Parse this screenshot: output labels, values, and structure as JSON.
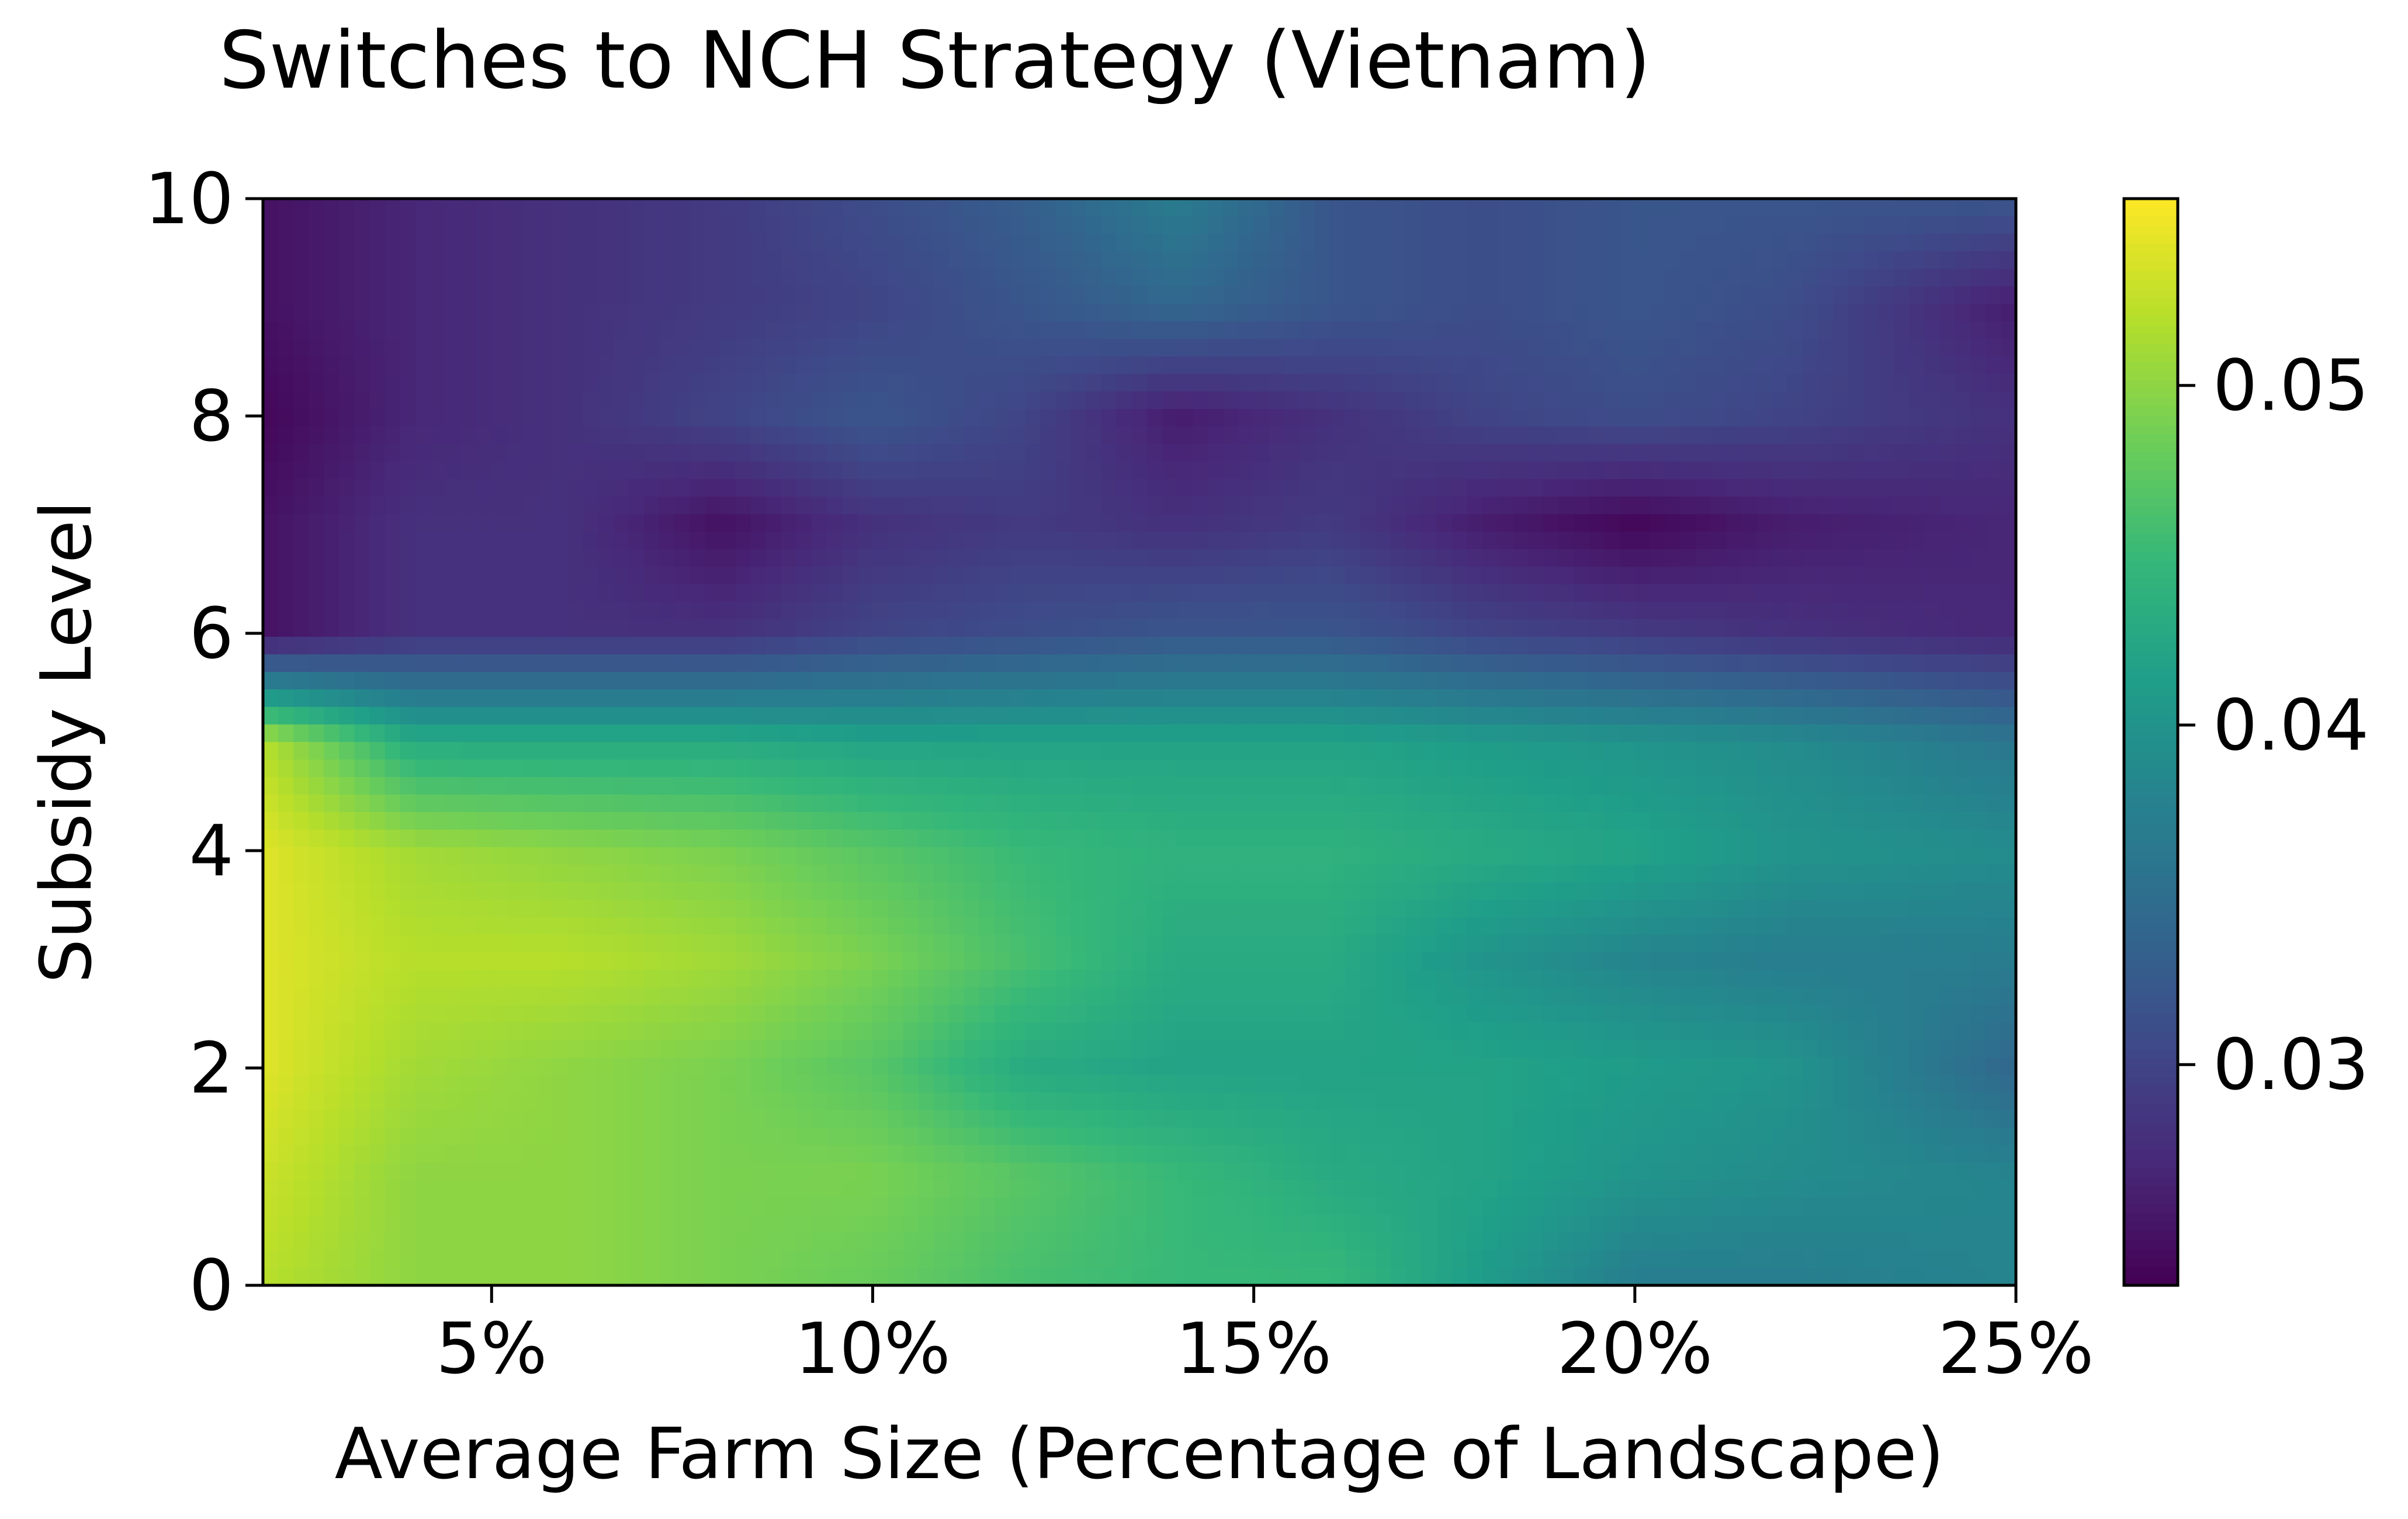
{
  "chart_data": {
    "type": "heatmap",
    "title": "Switches to NCH Strategy (Vietnam)",
    "xlabel": "Average Farm Size (Percentage of Landscape)",
    "ylabel": "Subsidy Level",
    "xlim": [
      2,
      25
    ],
    "ylim": [
      0,
      10
    ],
    "x_ticks": [
      {
        "value": 5,
        "label": "5%"
      },
      {
        "value": 10,
        "label": "10%"
      },
      {
        "value": 15,
        "label": "15%"
      },
      {
        "value": 20,
        "label": "20%"
      },
      {
        "value": 25,
        "label": "25%"
      }
    ],
    "y_ticks": [
      {
        "value": 0,
        "label": "0"
      },
      {
        "value": 2,
        "label": "2"
      },
      {
        "value": 4,
        "label": "4"
      },
      {
        "value": 6,
        "label": "6"
      },
      {
        "value": 8,
        "label": "8"
      },
      {
        "value": 10,
        "label": "10"
      }
    ],
    "colormap": "viridis",
    "colorbar": {
      "range": [
        0.0235,
        0.0555
      ],
      "ticks": [
        {
          "value": 0.03,
          "label": "0.03"
        },
        {
          "value": 0.04,
          "label": "0.04"
        },
        {
          "value": 0.05,
          "label": "0.05"
        }
      ]
    },
    "grid_x": [
      2,
      4,
      6,
      8,
      10,
      12,
      14,
      16,
      18,
      20,
      22,
      25
    ],
    "grid_y": [
      0,
      1,
      2,
      3,
      4,
      5,
      6,
      7,
      8,
      9,
      10
    ],
    "z": [
      [
        0.052,
        0.05,
        0.05,
        0.049,
        0.048,
        0.046,
        0.045,
        0.045,
        0.041,
        0.037,
        0.037,
        0.038
      ],
      [
        0.053,
        0.05,
        0.05,
        0.049,
        0.049,
        0.047,
        0.045,
        0.043,
        0.042,
        0.04,
        0.039,
        0.038
      ],
      [
        0.054,
        0.051,
        0.05,
        0.049,
        0.047,
        0.043,
        0.042,
        0.042,
        0.042,
        0.041,
        0.04,
        0.034
      ],
      [
        0.054,
        0.052,
        0.052,
        0.051,
        0.049,
        0.046,
        0.043,
        0.043,
        0.04,
        0.038,
        0.037,
        0.037
      ],
      [
        0.054,
        0.051,
        0.05,
        0.049,
        0.047,
        0.045,
        0.044,
        0.044,
        0.043,
        0.042,
        0.04,
        0.039
      ],
      [
        0.052,
        0.043,
        0.043,
        0.043,
        0.042,
        0.042,
        0.042,
        0.042,
        0.041,
        0.04,
        0.039,
        0.036
      ],
      [
        0.025,
        0.028,
        0.028,
        0.028,
        0.03,
        0.031,
        0.032,
        0.032,
        0.03,
        0.029,
        0.028,
        0.027
      ],
      [
        0.025,
        0.028,
        0.028,
        0.025,
        0.028,
        0.029,
        0.028,
        0.029,
        0.026,
        0.024,
        0.026,
        0.027
      ],
      [
        0.024,
        0.027,
        0.028,
        0.03,
        0.032,
        0.03,
        0.026,
        0.028,
        0.03,
        0.031,
        0.03,
        0.028
      ],
      [
        0.025,
        0.027,
        0.028,
        0.029,
        0.03,
        0.032,
        0.034,
        0.032,
        0.031,
        0.032,
        0.031,
        0.026
      ],
      [
        0.025,
        0.027,
        0.028,
        0.029,
        0.031,
        0.033,
        0.037,
        0.032,
        0.031,
        0.032,
        0.032,
        0.032
      ]
    ]
  }
}
